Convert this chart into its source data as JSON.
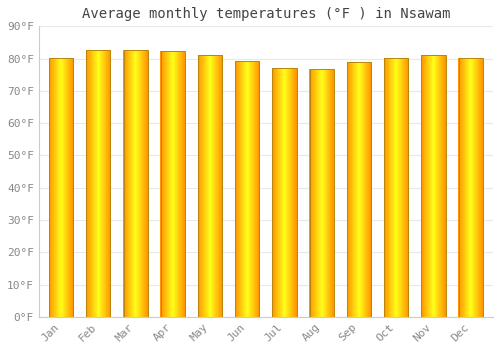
{
  "title": "Average monthly temperatures (°F ) in Nsawam",
  "months": [
    "Jan",
    "Feb",
    "Mar",
    "Apr",
    "May",
    "Jun",
    "Jul",
    "Aug",
    "Sep",
    "Oct",
    "Nov",
    "Dec"
  ],
  "values": [
    80.3,
    82.8,
    82.6,
    82.4,
    81.1,
    79.2,
    77.2,
    76.8,
    78.8,
    80.1,
    81.1,
    80.2
  ],
  "ylim": [
    0,
    90
  ],
  "yticks": [
    0,
    10,
    20,
    30,
    40,
    50,
    60,
    70,
    80,
    90
  ],
  "ytick_labels": [
    "0°F",
    "10°F",
    "20°F",
    "30°F",
    "40°F",
    "50°F",
    "60°F",
    "70°F",
    "80°F",
    "90°F"
  ],
  "background_color": "#FFFFFF",
  "grid_color": "#E8E8F0",
  "bar_edge_color": "#B8860B",
  "bar_center_color": "#FFD000",
  "bar_side_color": "#FF9900",
  "title_fontsize": 10,
  "tick_fontsize": 8,
  "font_family": "monospace",
  "bar_width": 0.65
}
